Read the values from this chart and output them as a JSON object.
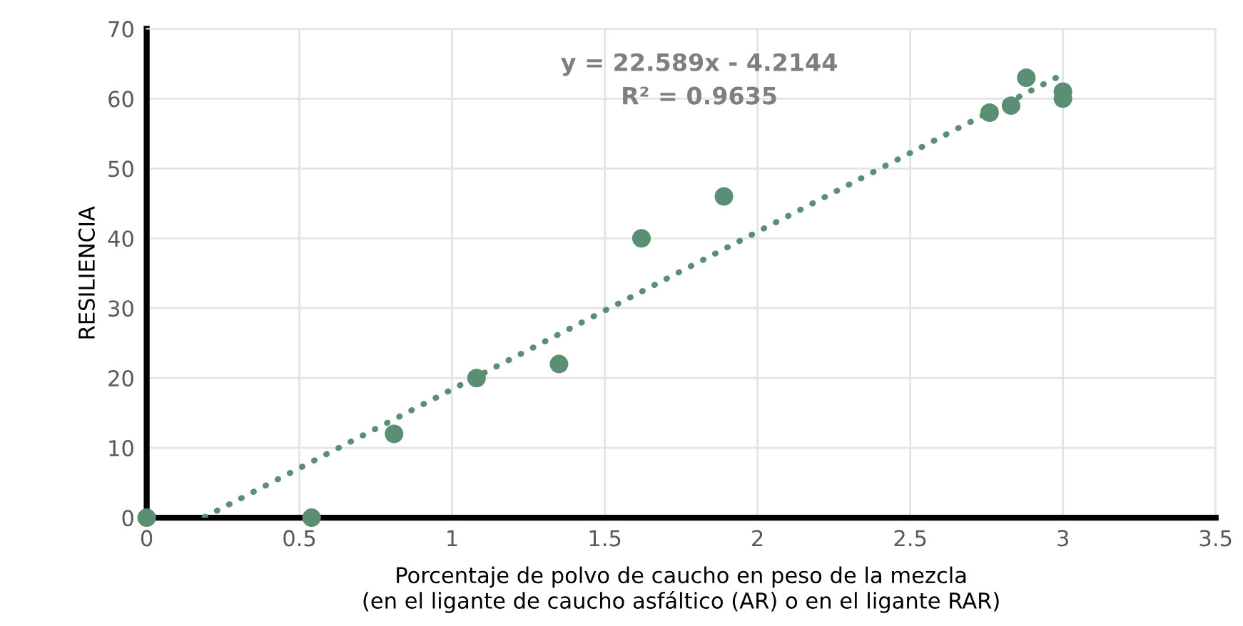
{
  "chart_data": {
    "type": "scatter",
    "xlabel": "Porcentaje de polvo de caucho en peso de la mezcla\n(en el ligante de caucho asfáltico (AR) o en el ligante RAR)",
    "ylabel": "RESILIENCIA",
    "annotations": [
      "y = 22.589x - 4.2144",
      "R² = 0.9635"
    ],
    "xlim": [
      0,
      3.5
    ],
    "xticks": [
      0,
      0.5,
      1,
      1.5,
      2,
      2.5,
      3,
      3.5
    ],
    "ylim": [
      0,
      70
    ],
    "yticks": [
      0,
      10,
      20,
      30,
      40,
      50,
      60,
      70
    ],
    "grid": true,
    "legend": false,
    "series": [
      {
        "color": "#5a8f73",
        "marker": "circle",
        "x": [
          0,
          0.54,
          0.81,
          1.08,
          1.35,
          1.62,
          1.89,
          2.76,
          2.83,
          2.88,
          3.0,
          3.0
        ],
        "values": [
          0,
          0,
          12,
          20,
          22,
          40,
          46,
          58,
          59,
          63,
          60,
          61
        ]
      },
      {
        "type": "line",
        "color": "#5a8f73",
        "line_style": "dotted",
        "marker": "none",
        "x": [
          0.19,
          3.0
        ],
        "values": [
          0.1,
          63.5
        ]
      }
    ]
  }
}
